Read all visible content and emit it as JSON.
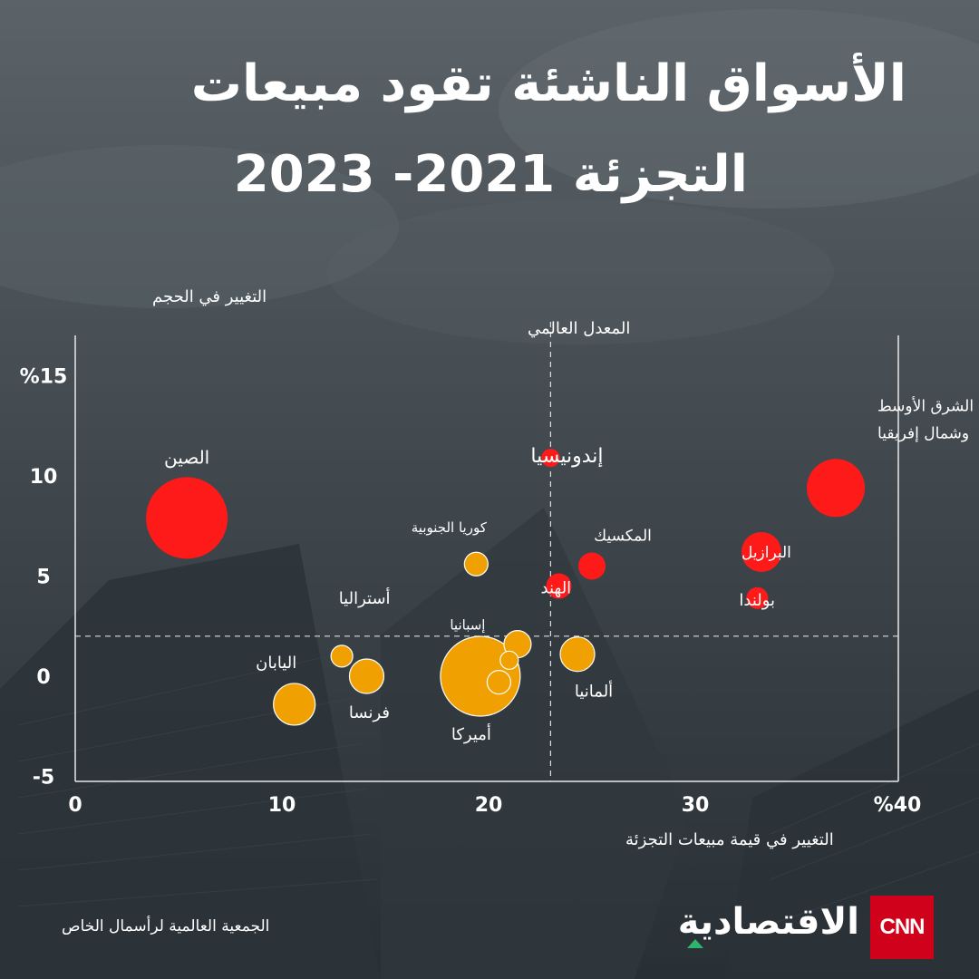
{
  "title": {
    "line1": "الأسواق الناشئة تقود مبيعات",
    "line2": "التجزئة   2021- 2023"
  },
  "source": "الجمعية العالمية لرأسمال الخاص",
  "logo": {
    "brand": "CNN",
    "name": "الاقتصادية"
  },
  "colors": {
    "emerging": "#ff1a1a",
    "developed": "#f0a000",
    "developed_stroke": "#ffffff"
  },
  "chart_data": {
    "type": "scatter",
    "xlabel": "التغيير في قيمة  مبيعات التجزئة",
    "ylabel": "التغيير في الحجم",
    "xlim": [
      0,
      40
    ],
    "ylim": [
      -5,
      18
    ],
    "x_ticks": [
      {
        "value": 0,
        "label": "0"
      },
      {
        "value": 10,
        "label": "10"
      },
      {
        "value": 20,
        "label": "20"
      },
      {
        "value": 30,
        "label": "30"
      },
      {
        "value": 40,
        "label": "%40"
      }
    ],
    "y_ticks": [
      {
        "value": 15,
        "label": "%15"
      },
      {
        "value": 10,
        "label": "10"
      },
      {
        "value": 5,
        "label": "5"
      },
      {
        "value": 0,
        "label": "0"
      },
      {
        "value": -5,
        "label": "-5"
      }
    ],
    "reference_lines": {
      "vertical": {
        "x": 23,
        "label": "المعدل العالمي"
      },
      "horizontal": {
        "y": 2
      }
    },
    "points": [
      {
        "label": "الصين",
        "x": 5.4,
        "y": 7.9,
        "size": 45,
        "group": "emerging"
      },
      {
        "label": "إندونيسيا",
        "x": 23,
        "y": 10.9,
        "size": 10,
        "group": "emerging"
      },
      {
        "label": "الشرق الأوسط\nوشمال إفريقيا",
        "x": 36.8,
        "y": 9.4,
        "size": 32,
        "group": "emerging"
      },
      {
        "label": "المكسيك",
        "x": 25,
        "y": 5.5,
        "size": 15,
        "group": "emerging"
      },
      {
        "label": "البرازيل",
        "x": 33.2,
        "y": 6.2,
        "size": 22,
        "group": "emerging"
      },
      {
        "label": "الهند",
        "x": 23.4,
        "y": 4.5,
        "size": 14,
        "group": "emerging"
      },
      {
        "label": "بولندا",
        "x": 33,
        "y": 3.9,
        "size": 12,
        "group": "emerging"
      },
      {
        "label": "كوريا الجنوبية",
        "x": 19.4,
        "y": 5.6,
        "size": 13,
        "group": "developed"
      },
      {
        "label": "أستراليا",
        "x": 12.9,
        "y": 1.0,
        "size": 12,
        "group": "developed"
      },
      {
        "label": "إسبانيا",
        "x": 21.4,
        "y": 1.6,
        "size": 15,
        "group": "developed"
      },
      {
        "label": "",
        "x": 21.0,
        "y": 0.8,
        "size": 10,
        "group": "developed"
      },
      {
        "label": "",
        "x": 20.5,
        "y": -0.3,
        "size": 13,
        "group": "developed"
      },
      {
        "label": "أميركا",
        "x": 19.6,
        "y": 0.0,
        "size": 44,
        "group": "developed"
      },
      {
        "label": "ألمانيا",
        "x": 24.3,
        "y": 1.1,
        "size": 19,
        "group": "developed"
      },
      {
        "label": "فرنسا",
        "x": 14.1,
        "y": 0.0,
        "size": 19,
        "group": "developed"
      },
      {
        "label": "اليابان",
        "x": 10.6,
        "y": -1.4,
        "size": 23,
        "group": "developed"
      }
    ]
  }
}
